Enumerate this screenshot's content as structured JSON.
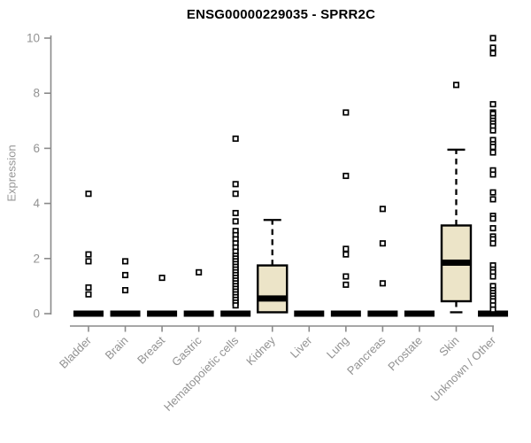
{
  "chart_data": {
    "type": "boxplot",
    "title": "ENSG00000229035 - SPRR2C",
    "ylabel": "Expression",
    "xlabel": "",
    "ylim": [
      0,
      10
    ],
    "yticks": [
      0,
      2,
      4,
      6,
      8,
      10
    ],
    "grid": false,
    "legend": "none",
    "colors": {
      "box_fill": "#ece4c8",
      "box_stroke": "#000000",
      "axis": "#8a8a8a",
      "tick_label": "#929292",
      "title": "#000000",
      "outlier_stroke": "#000000",
      "background": "#ffffff"
    },
    "categories": [
      "Bladder",
      "Brain",
      "Breast",
      "Gastric",
      "Hematopoietic cells",
      "Kidney",
      "Liver",
      "Lung",
      "Pancreas",
      "Prostate",
      "Skin",
      "Unknown / Other"
    ],
    "series": [
      {
        "category": "Bladder",
        "q1": 0,
        "median": 0,
        "q3": 0,
        "whisker_low": 0,
        "whisker_high": 0,
        "outliers": [
          4.35,
          2.15,
          1.9,
          0.95,
          0.7
        ]
      },
      {
        "category": "Brain",
        "q1": 0,
        "median": 0,
        "q3": 0,
        "whisker_low": 0,
        "whisker_high": 0,
        "outliers": [
          1.9,
          1.4,
          0.85
        ]
      },
      {
        "category": "Breast",
        "q1": 0,
        "median": 0,
        "q3": 0,
        "whisker_low": 0,
        "whisker_high": 0,
        "outliers": [
          1.3
        ]
      },
      {
        "category": "Gastric",
        "q1": 0,
        "median": 0,
        "q3": 0,
        "whisker_low": 0,
        "whisker_high": 0,
        "outliers": [
          1.5
        ]
      },
      {
        "category": "Hematopoietic cells",
        "q1": 0,
        "median": 0,
        "q3": 0,
        "whisker_low": 0,
        "whisker_high": 0,
        "outliers": [
          6.35,
          4.7,
          4.35,
          3.65,
          3.35,
          3.0,
          2.85,
          2.7,
          2.55,
          2.4,
          2.25,
          2.1,
          2.0,
          1.9,
          1.8,
          1.7,
          1.6,
          1.5,
          1.4,
          1.3,
          1.2,
          1.1,
          1.0,
          0.9,
          0.8,
          0.7,
          0.6,
          0.5,
          0.4,
          0.3
        ]
      },
      {
        "category": "Kidney",
        "q1": 0.05,
        "median": 0.55,
        "q3": 1.75,
        "whisker_low": 0.05,
        "whisker_high": 3.4,
        "outliers": []
      },
      {
        "category": "Liver",
        "q1": 0,
        "median": 0,
        "q3": 0,
        "whisker_low": 0,
        "whisker_high": 0,
        "outliers": []
      },
      {
        "category": "Lung",
        "q1": 0,
        "median": 0,
        "q3": 0,
        "whisker_low": 0,
        "whisker_high": 0,
        "outliers": [
          7.3,
          5.0,
          2.35,
          2.15,
          1.35,
          1.05
        ]
      },
      {
        "category": "Pancreas",
        "q1": 0,
        "median": 0,
        "q3": 0,
        "whisker_low": 0,
        "whisker_high": 0,
        "outliers": [
          3.8,
          2.55,
          1.1
        ]
      },
      {
        "category": "Prostate",
        "q1": 0,
        "median": 0,
        "q3": 0,
        "whisker_low": 0,
        "whisker_high": 0,
        "outliers": []
      },
      {
        "category": "Skin",
        "q1": 0.45,
        "median": 1.85,
        "q3": 3.2,
        "whisker_low": 0.05,
        "whisker_high": 5.95,
        "outliers": [
          8.3
        ]
      },
      {
        "category": "Unknown / Other",
        "q1": 0,
        "median": 0,
        "q3": 0,
        "whisker_low": 0,
        "whisker_high": 0,
        "outliers": [
          10.0,
          9.65,
          9.45,
          7.6,
          7.3,
          7.25,
          7.1,
          7.0,
          6.9,
          6.8,
          6.65,
          6.3,
          6.15,
          6.05,
          5.85,
          5.2,
          5.05,
          4.4,
          4.15,
          3.55,
          3.45,
          3.1,
          2.8,
          2.7,
          2.55,
          1.75,
          1.6,
          1.5,
          1.35,
          1.0,
          0.85,
          0.75,
          0.65,
          0.55,
          0.45,
          0.3,
          0.15
        ]
      }
    ]
  }
}
